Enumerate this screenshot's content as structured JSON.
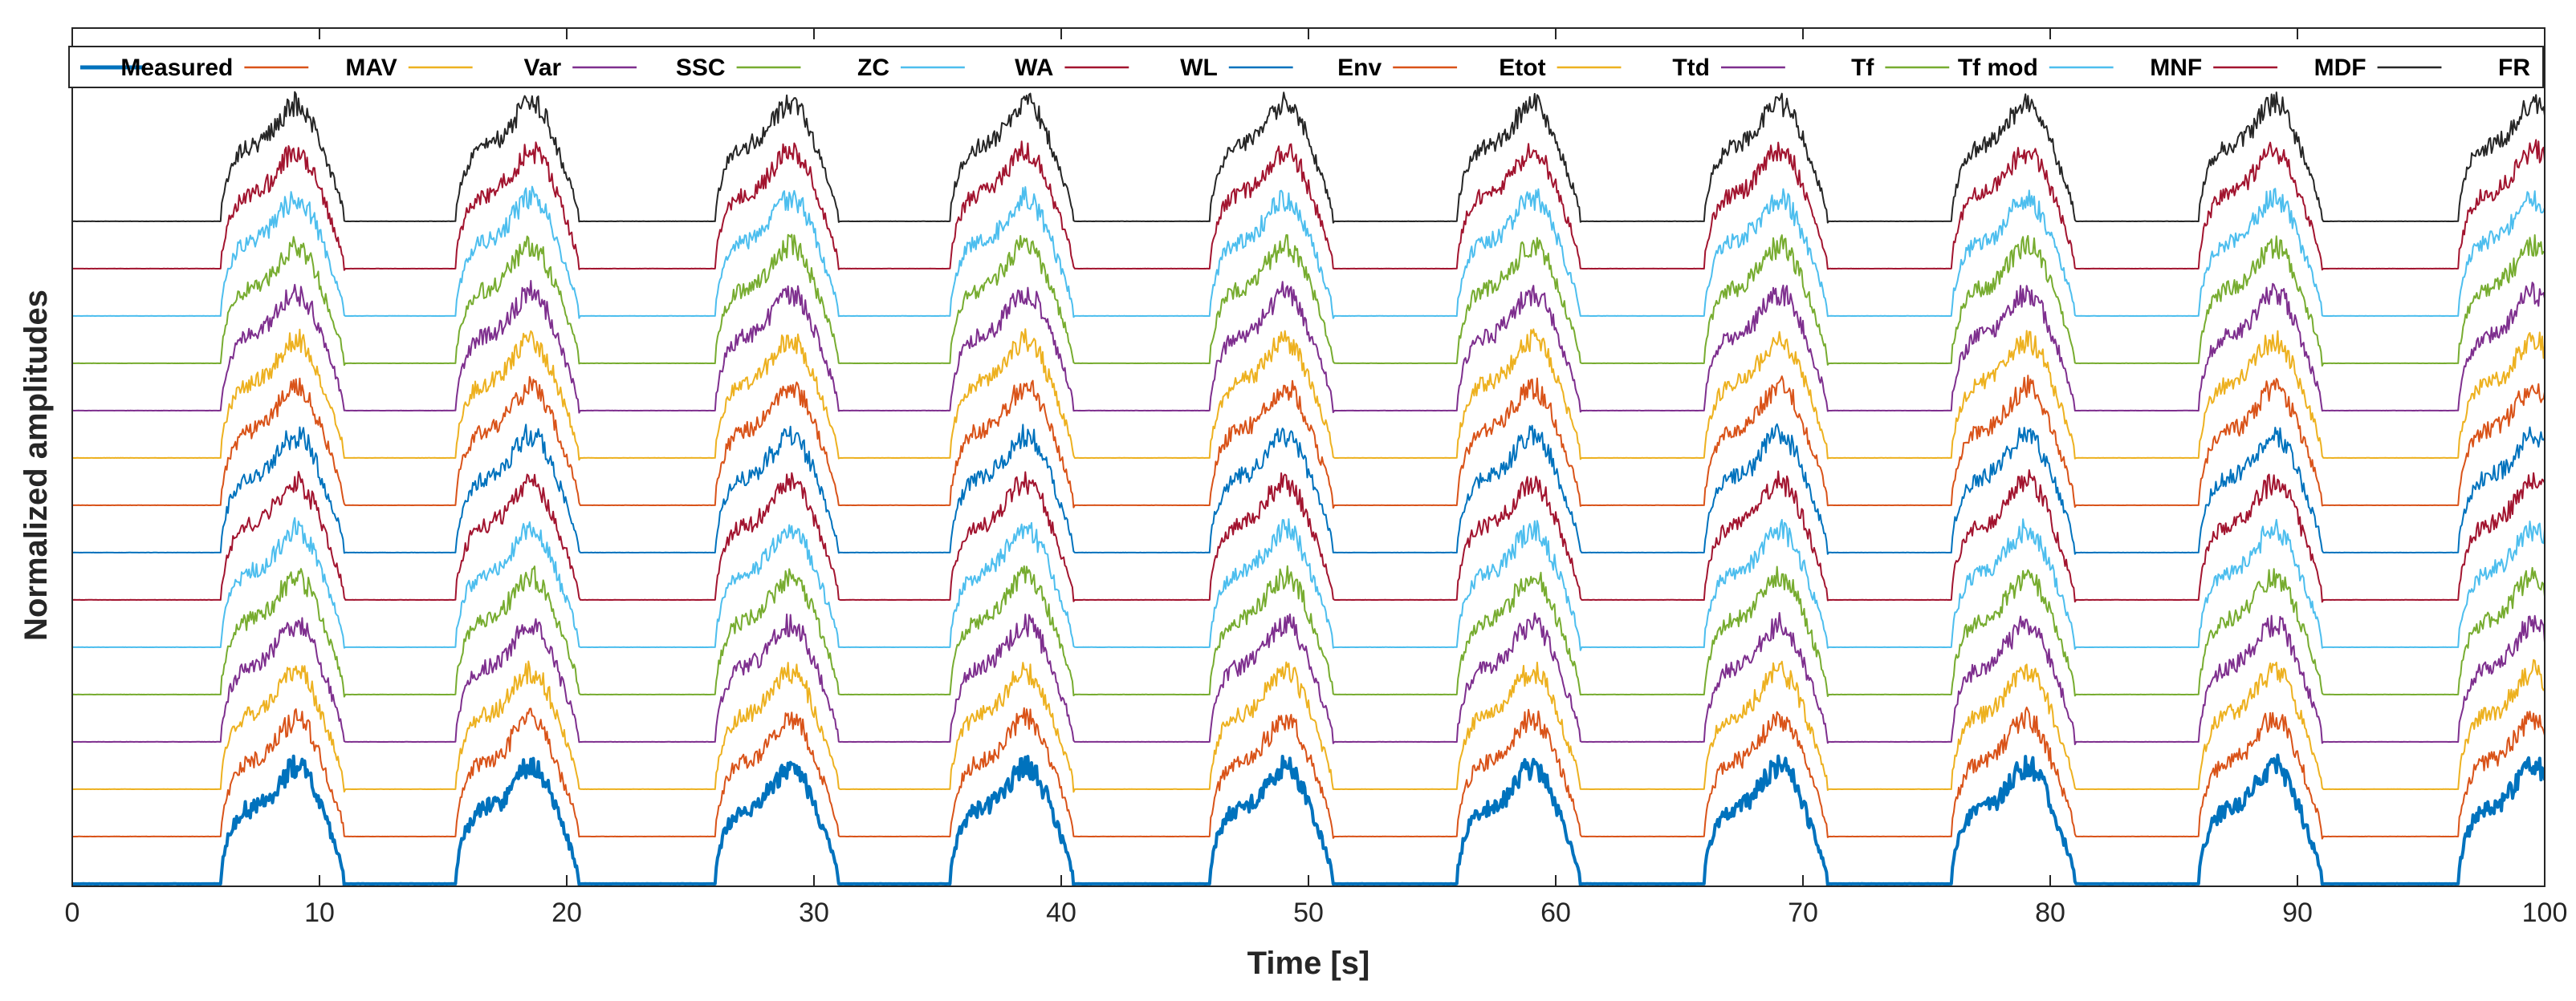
{
  "chart_data": {
    "type": "line",
    "title": "",
    "xlabel": "Time [s]",
    "ylabel": "Normalized amplitudes",
    "xlim": [
      0,
      100
    ],
    "xticks": [
      0,
      10,
      20,
      30,
      40,
      50,
      60,
      70,
      80,
      90,
      100
    ],
    "xtick_labels": [
      "0",
      "10",
      "20",
      "30",
      "40",
      "50",
      "60",
      "70",
      "80",
      "90",
      "100"
    ],
    "yticks_visible": false,
    "grid": false,
    "legend_position": "top",
    "legend_orientation": "horizontal",
    "activation_onsets_s": [
      6,
      15.5,
      26,
      35.5,
      46,
      56,
      66,
      76,
      86,
      96.5
    ],
    "activation_duration_s": 5,
    "series": [
      {
        "name": "Measured",
        "color": "#0072BD",
        "offset": 0,
        "bold": true
      },
      {
        "name": "MAV",
        "color": "#D95319",
        "offset": 1
      },
      {
        "name": "Var",
        "color": "#EDB120",
        "offset": 2
      },
      {
        "name": "SSC",
        "color": "#7E2F8E",
        "offset": 3
      },
      {
        "name": "ZC",
        "color": "#77AC30",
        "offset": 4
      },
      {
        "name": "WA",
        "color": "#4DBEEE",
        "offset": 5
      },
      {
        "name": "WL",
        "color": "#A2142F",
        "offset": 6
      },
      {
        "name": "Env",
        "color": "#0072BD",
        "offset": 7
      },
      {
        "name": "Etot",
        "color": "#D95319",
        "offset": 8
      },
      {
        "name": "Ttd",
        "color": "#EDB120",
        "offset": 9
      },
      {
        "name": "Tf",
        "color": "#7E2F8E",
        "offset": 10
      },
      {
        "name": "Tf mod",
        "color": "#77AC30",
        "offset": 11
      },
      {
        "name": "MNF",
        "color": "#4DBEEE",
        "offset": 12
      },
      {
        "name": "MDF",
        "color": "#A2142F",
        "offset": 13
      },
      {
        "name": "FR",
        "color": "#262626",
        "offset": 14
      }
    ]
  }
}
